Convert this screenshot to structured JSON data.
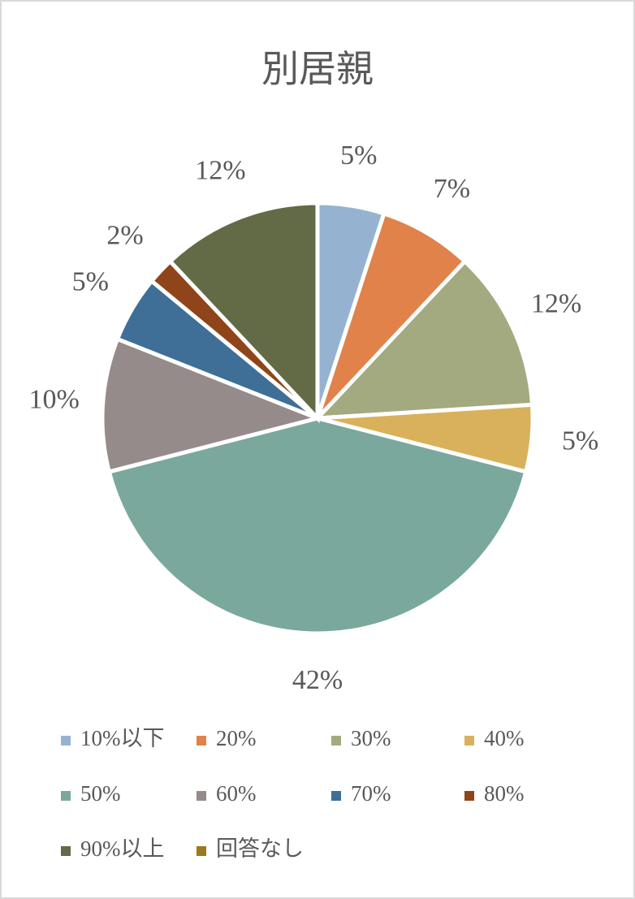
{
  "chart_data": {
    "type": "pie",
    "title": "別居親",
    "categories": [
      "10%以下",
      "20%",
      "30%",
      "40%",
      "50%",
      "60%",
      "70%",
      "80%",
      "90%以上",
      "回答なし"
    ],
    "values": [
      5,
      7,
      12,
      5,
      42,
      10,
      5,
      2,
      12,
      0
    ],
    "value_labels": [
      "5%",
      "7%",
      "12%",
      "5%",
      "42%",
      "10%",
      "5%",
      "2%",
      "12%",
      null
    ],
    "colors": [
      "#95b3d0",
      "#e0824a",
      "#a3aa80",
      "#d8b15a",
      "#7ba89c",
      "#958b8a",
      "#3f6e97",
      "#8f4519",
      "#636b46",
      "#9a7a1c"
    ],
    "legend": "bottom"
  }
}
